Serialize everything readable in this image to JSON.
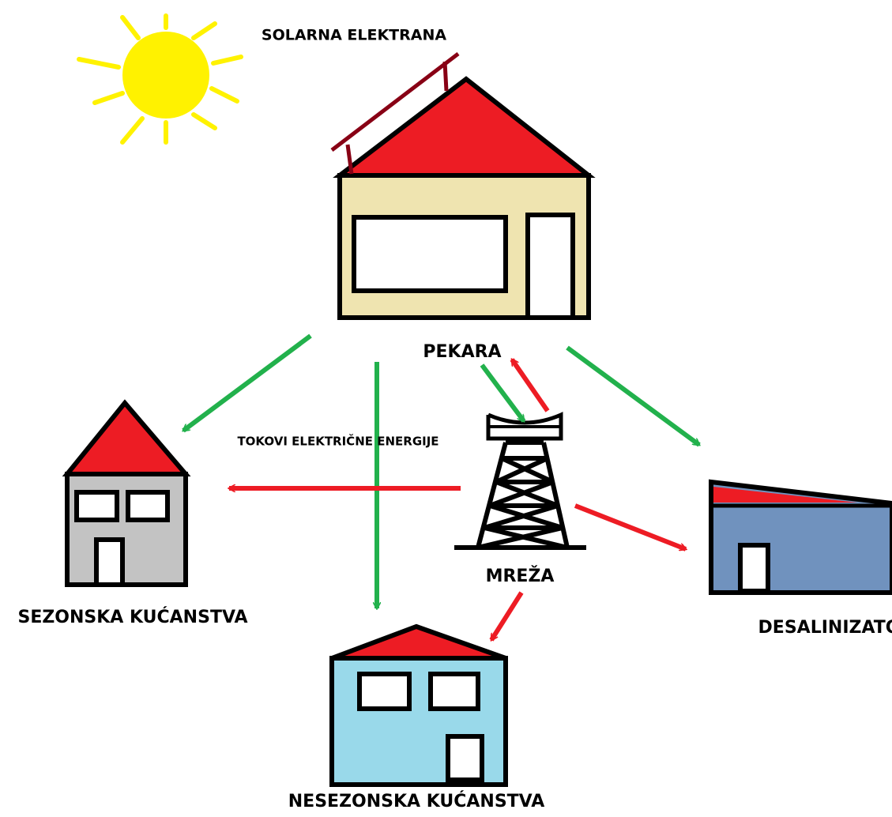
{
  "title": "SOLARNA ELEKTRANA",
  "annotation": "TOKOVI ELEKTRIČNE ENERGIJE",
  "nodes": [
    {
      "label": "PEKARA"
    },
    {
      "label": "MREŽA"
    },
    {
      "label": "SEZONSKA KUĆANSTVA"
    },
    {
      "label": "NESEZONSKA KUĆANSTVA"
    },
    {
      "label": "DESALINIZATOR"
    }
  ]
}
